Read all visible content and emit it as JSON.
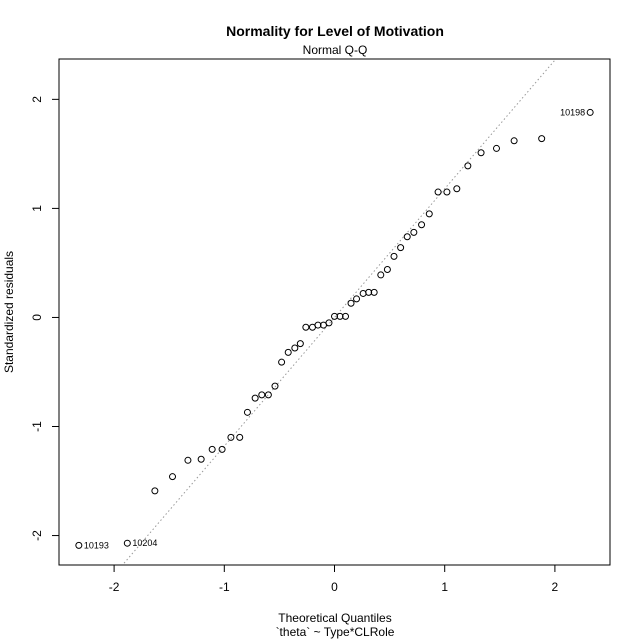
{
  "chart_data": {
    "type": "scatter",
    "title": "Normality for Level of Motivation",
    "subtitle": "Normal Q-Q",
    "xlabel": "Theoretical Quantiles",
    "xlabel2": "`theta` ~ Type*CLRole",
    "ylabel": "Standardized residuals",
    "xlim": [
      -2.5,
      2.5
    ],
    "ylim": [
      -2.27,
      2.37
    ],
    "x_ticks": [
      -2,
      -1,
      0,
      1,
      2
    ],
    "y_ticks": [
      -2,
      -1,
      0,
      1,
      2
    ],
    "x_tick_labels": [
      "-2",
      "-1",
      "0",
      "1",
      "2"
    ],
    "y_tick_labels": [
      "-2",
      "-1",
      "0",
      "1",
      "2"
    ],
    "grid": false,
    "reference_line": {
      "style": "dotted",
      "color": "#999999",
      "intercept": 0.0,
      "slope": 1.18
    },
    "points": [
      {
        "x": -2.32,
        "y": -2.09,
        "label": "10193"
      },
      {
        "x": -1.88,
        "y": -2.07,
        "label": "10204"
      },
      {
        "x": -1.63,
        "y": -1.59
      },
      {
        "x": -1.47,
        "y": -1.46
      },
      {
        "x": -1.33,
        "y": -1.31
      },
      {
        "x": -1.21,
        "y": -1.3
      },
      {
        "x": -1.11,
        "y": -1.21
      },
      {
        "x": -1.02,
        "y": -1.21
      },
      {
        "x": -0.94,
        "y": -1.1
      },
      {
        "x": -0.86,
        "y": -1.1
      },
      {
        "x": -0.79,
        "y": -0.87
      },
      {
        "x": -0.72,
        "y": -0.74
      },
      {
        "x": -0.66,
        "y": -0.71
      },
      {
        "x": -0.6,
        "y": -0.71
      },
      {
        "x": -0.54,
        "y": -0.63
      },
      {
        "x": -0.48,
        "y": -0.41
      },
      {
        "x": -0.42,
        "y": -0.32
      },
      {
        "x": -0.36,
        "y": -0.28
      },
      {
        "x": -0.31,
        "y": -0.24
      },
      {
        "x": -0.26,
        "y": -0.09
      },
      {
        "x": -0.2,
        "y": -0.09
      },
      {
        "x": -0.15,
        "y": -0.07
      },
      {
        "x": -0.1,
        "y": -0.07
      },
      {
        "x": -0.05,
        "y": -0.05
      },
      {
        "x": 0.0,
        "y": 0.01
      },
      {
        "x": 0.05,
        "y": 0.01
      },
      {
        "x": 0.1,
        "y": 0.01
      },
      {
        "x": 0.15,
        "y": 0.13
      },
      {
        "x": 0.2,
        "y": 0.17
      },
      {
        "x": 0.26,
        "y": 0.22
      },
      {
        "x": 0.31,
        "y": 0.23
      },
      {
        "x": 0.36,
        "y": 0.23
      },
      {
        "x": 0.42,
        "y": 0.39
      },
      {
        "x": 0.48,
        "y": 0.44
      },
      {
        "x": 0.54,
        "y": 0.56
      },
      {
        "x": 0.6,
        "y": 0.64
      },
      {
        "x": 0.66,
        "y": 0.74
      },
      {
        "x": 0.72,
        "y": 0.78
      },
      {
        "x": 0.79,
        "y": 0.85
      },
      {
        "x": 0.86,
        "y": 0.95
      },
      {
        "x": 0.94,
        "y": 1.15
      },
      {
        "x": 1.02,
        "y": 1.15
      },
      {
        "x": 1.11,
        "y": 1.18
      },
      {
        "x": 1.21,
        "y": 1.39
      },
      {
        "x": 1.33,
        "y": 1.51
      },
      {
        "x": 1.47,
        "y": 1.55
      },
      {
        "x": 1.63,
        "y": 1.62
      },
      {
        "x": 1.88,
        "y": 1.64
      },
      {
        "x": 2.32,
        "y": 1.88,
        "label": "10198"
      }
    ]
  }
}
